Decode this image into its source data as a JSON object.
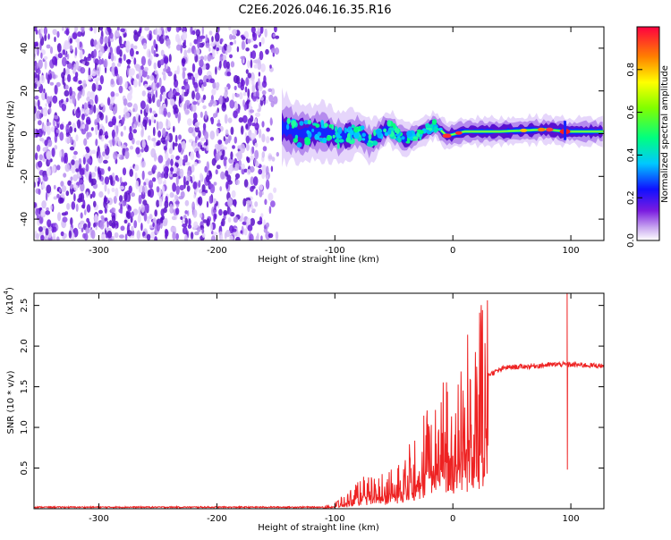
{
  "title": "C2E6.2026.046.16.35.R16",
  "colors": {
    "snr_line": "#ee2222",
    "spec_bg_purple": "#6a1bd8",
    "frame": "#000000"
  },
  "chart_data": [
    {
      "type": "heatmap",
      "name": "spectrogram",
      "xlabel": "Height of straight line (km)",
      "ylabel": "Frequency (Hz)",
      "xlim": [
        -355,
        128
      ],
      "ylim": [
        -50,
        50
      ],
      "xticks": [
        -300,
        -200,
        -100,
        0,
        100
      ],
      "yticks": [
        -40,
        -20,
        0,
        20,
        40
      ],
      "noise_region_x": [
        -355,
        -145
      ],
      "signal_ridge": [
        {
          "x": -145,
          "y": 3
        },
        {
          "x": -130,
          "y": 0
        },
        {
          "x": -110,
          "y": 1
        },
        {
          "x": -95,
          "y": -2
        },
        {
          "x": -80,
          "y": 1
        },
        {
          "x": -70,
          "y": -4
        },
        {
          "x": -55,
          "y": 3
        },
        {
          "x": -40,
          "y": -3
        },
        {
          "x": -25,
          "y": 1
        },
        {
          "x": -15,
          "y": 4
        },
        {
          "x": -5,
          "y": -1
        },
        {
          "x": 10,
          "y": 1
        },
        {
          "x": 40,
          "y": 1
        },
        {
          "x": 80,
          "y": 2
        },
        {
          "x": 95,
          "y": 1
        },
        {
          "x": 128,
          "y": 1
        }
      ],
      "colorbar": {
        "label": "Normalized spectral amplitude",
        "range": [
          0,
          1
        ],
        "ticks": [
          "0.0",
          "0.2",
          "0.4",
          "0.6",
          "0.8"
        ]
      }
    },
    {
      "type": "line",
      "name": "snr",
      "xlabel": "Height of straight line (km)",
      "ylabel": "SNR (10 * v/v)",
      "multiplier_label": "(x10",
      "multiplier_exp": "4",
      "xlim": [
        -355,
        128
      ],
      "ylim": [
        0,
        2.65
      ],
      "xticks": [
        -300,
        -200,
        -100,
        0,
        100
      ],
      "yticks": [
        "0.5",
        "1.0",
        "1.5",
        "2.0",
        "2.5"
      ],
      "envelope": [
        {
          "x": -355,
          "y": 0.02
        },
        {
          "x": -110,
          "y": 0.02
        },
        {
          "x": -100,
          "y": 0.05
        },
        {
          "x": -90,
          "y": 0.12
        },
        {
          "x": -75,
          "y": 0.25
        },
        {
          "x": -55,
          "y": 0.3
        },
        {
          "x": -40,
          "y": 0.45
        },
        {
          "x": -25,
          "y": 0.7
        },
        {
          "x": -10,
          "y": 0.95
        },
        {
          "x": 0,
          "y": 1.05
        },
        {
          "x": 10,
          "y": 1.25
        },
        {
          "x": 20,
          "y": 1.5
        },
        {
          "x": 30,
          "y": 1.65
        },
        {
          "x": 45,
          "y": 1.74
        },
        {
          "x": 70,
          "y": 1.76
        },
        {
          "x": 90,
          "y": 1.78
        },
        {
          "x": 128,
          "y": 1.76
        }
      ],
      "spike": {
        "x": 97,
        "high": 2.65,
        "low": 0.48
      }
    }
  ]
}
